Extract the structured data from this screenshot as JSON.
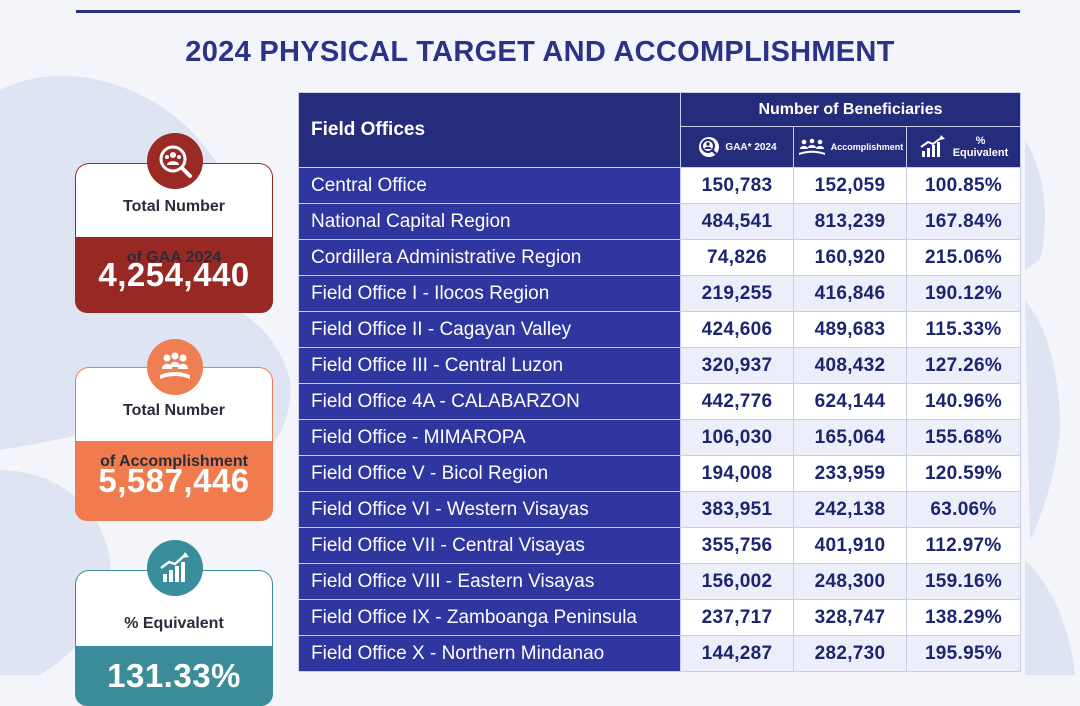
{
  "title": "2024 PHYSICAL TARGET AND ACCOMPLISHMENT",
  "colors": {
    "navy": "#262c7c",
    "table_row_blue": "#2f36a0",
    "gaa_red": "#972823",
    "accomplishment_orange": "#f07b4e",
    "equivalent_teal": "#3a8c99"
  },
  "summary": {
    "gaa": {
      "label_line1": "Total Number",
      "label_line2": "of GAA 2024",
      "value": "4,254,440",
      "icon": "people-search-icon"
    },
    "accomplishment": {
      "label_line1": "Total Number",
      "label_line2": "of Accomplishment",
      "value": "5,587,446",
      "icon": "group-hands-icon"
    },
    "equivalent": {
      "label": "% Equivalent",
      "value": "131.33%",
      "icon": "growth-chart-icon"
    }
  },
  "table": {
    "field_offices_header": "Field Offices",
    "beneficiaries_header": "Number of Beneficiaries",
    "col_gaa": "GAA* 2024",
    "col_accomplishment": "Accomplishment",
    "col_pct_line1": "%",
    "col_pct_line2": "Equivalent",
    "rows": [
      {
        "office": "Central Office",
        "gaa": "150,783",
        "accomplishment": "152,059",
        "pct": "100.85%"
      },
      {
        "office": "National Capital Region",
        "gaa": "484,541",
        "accomplishment": "813,239",
        "pct": "167.84%"
      },
      {
        "office": "Cordillera Administrative Region",
        "gaa": "74,826",
        "accomplishment": "160,920",
        "pct": "215.06%"
      },
      {
        "office": "Field Office I - Ilocos Region",
        "gaa": "219,255",
        "accomplishment": "416,846",
        "pct": "190.12%"
      },
      {
        "office": "Field Office II - Cagayan Valley",
        "gaa": "424,606",
        "accomplishment": "489,683",
        "pct": "115.33%"
      },
      {
        "office": "Field Office III - Central Luzon",
        "gaa": "320,937",
        "accomplishment": "408,432",
        "pct": "127.26%"
      },
      {
        "office": "Field Office 4A - CALABARZON",
        "gaa": "442,776",
        "accomplishment": "624,144",
        "pct": "140.96%"
      },
      {
        "office": "Field Office - MIMAROPA",
        "gaa": "106,030",
        "accomplishment": "165,064",
        "pct": "155.68%"
      },
      {
        "office": "Field Office V - Bicol Region",
        "gaa": "194,008",
        "accomplishment": "233,959",
        "pct": "120.59%"
      },
      {
        "office": "Field Office VI - Western Visayas",
        "gaa": "383,951",
        "accomplishment": "242,138",
        "pct": "63.06%"
      },
      {
        "office": "Field Office VII - Central Visayas",
        "gaa": "355,756",
        "accomplishment": "401,910",
        "pct": "112.97%"
      },
      {
        "office": "Field Office VIII - Eastern Visayas",
        "gaa": "156,002",
        "accomplishment": "248,300",
        "pct": "159.16%"
      },
      {
        "office": "Field Office IX - Zamboanga Peninsula",
        "gaa": "237,717",
        "accomplishment": "328,747",
        "pct": "138.29%"
      },
      {
        "office": "Field Office X - Northern Mindanao",
        "gaa": "144,287",
        "accomplishment": "282,730",
        "pct": "195.95%"
      }
    ]
  }
}
